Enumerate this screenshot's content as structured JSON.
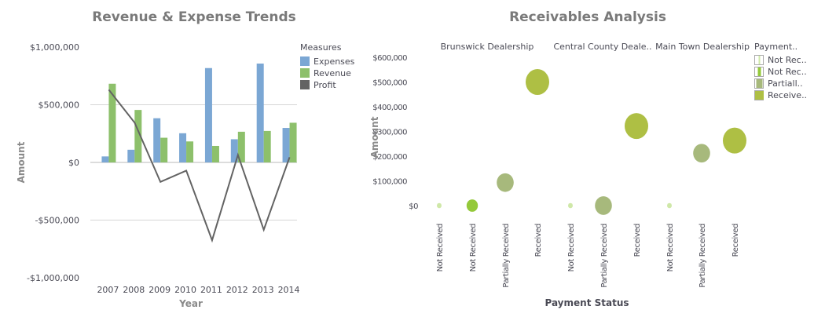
{
  "chart_data": [
    {
      "type": "bar",
      "title": "Revenue & Expense Trends",
      "xlabel": "Year",
      "ylabel": "Amount",
      "ylim": [
        -1000000,
        1000000
      ],
      "yticks": [
        "$1,000,000",
        "$500,000",
        "$0",
        "-$500,000",
        "-$1,000,000"
      ],
      "ytick_values": [
        1000000,
        500000,
        0,
        -500000,
        -1000000
      ],
      "categories": [
        "2007",
        "2008",
        "2009",
        "2010",
        "2011",
        "2012",
        "2013",
        "2014"
      ],
      "legend_title": "Measures",
      "legend_position": "top-right",
      "grid": true,
      "series": [
        {
          "name": "Expenses",
          "type": "bar",
          "color": "#7ba7d4",
          "values": [
            52000,
            110000,
            383000,
            253000,
            818000,
            201000,
            857000,
            299000
          ]
        },
        {
          "name": "Revenue",
          "type": "bar",
          "color": "#8dc06b",
          "values": [
            682000,
            455000,
            214000,
            182000,
            143000,
            266000,
            273000,
            344000
          ]
        },
        {
          "name": "Profit",
          "type": "line",
          "color": "#636363",
          "values": [
            630000,
            345000,
            -169000,
            -71000,
            -675000,
            65000,
            -584000,
            45000
          ]
        }
      ]
    },
    {
      "type": "scatter",
      "title": "Receivables Analysis",
      "xlabel": "Payment Status",
      "ylabel": "Amount",
      "ylim": [
        0,
        600000
      ],
      "yticks": [
        "$600,000",
        "$500,000",
        "$400,000",
        "$300,000",
        "$200,000",
        "$100,000",
        "$0"
      ],
      "ytick_values": [
        600000,
        500000,
        400000,
        300000,
        200000,
        100000,
        0
      ],
      "groups": [
        "Brunswick Dealership",
        "Central County Deale..",
        "Main Town Dealership"
      ],
      "legend_title": "Payment..",
      "legend_position": "top-right",
      "legend": [
        {
          "label": "Not Rec..",
          "color": "#cfe8a8"
        },
        {
          "label": "Not Rec..",
          "color": "#94c93a"
        },
        {
          "label": "Partiall..",
          "color": "#a7b97c"
        },
        {
          "label": "Receive..",
          "color": "#aebf44"
        }
      ],
      "points": [
        {
          "group": 0,
          "category": "Not Received",
          "value": 0,
          "size": 1,
          "legend": 0
        },
        {
          "group": 0,
          "category": "Not Received",
          "value": 0,
          "size": 2.4,
          "legend": 1
        },
        {
          "group": 0,
          "category": "Partially Received",
          "value": 93000,
          "size": 3.6,
          "legend": 2
        },
        {
          "group": 0,
          "category": "Received",
          "value": 500000,
          "size": 5,
          "legend": 3
        },
        {
          "group": 1,
          "category": "Not Received",
          "value": 0,
          "size": 1,
          "legend": 0
        },
        {
          "group": 1,
          "category": "Partially Received",
          "value": 0,
          "size": 3.6,
          "legend": 2
        },
        {
          "group": 1,
          "category": "Received",
          "value": 322000,
          "size": 5,
          "legend": 3
        },
        {
          "group": 2,
          "category": "Not Received",
          "value": 0,
          "size": 1,
          "legend": 0
        },
        {
          "group": 2,
          "category": "Partially Received",
          "value": 212000,
          "size": 3.6,
          "legend": 2
        },
        {
          "group": 2,
          "category": "Received",
          "value": 263000,
          "size": 5,
          "legend": 3
        }
      ]
    }
  ]
}
